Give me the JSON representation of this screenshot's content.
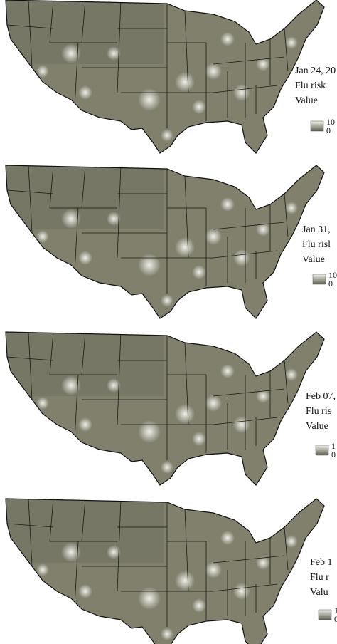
{
  "panels": [
    {
      "date": "Jan 24, 20",
      "label": "Flu risk",
      "value_label": "Value",
      "legend_max": "10",
      "legend_min": "0"
    },
    {
      "date": "Jan 31,",
      "label": "Flu risl",
      "value_label": "Value",
      "legend_max": "10",
      "legend_min": "0"
    },
    {
      "date": "Feb 07,",
      "label": "Flu ris",
      "value_label": "Value",
      "legend_max": "1",
      "legend_min": "0"
    },
    {
      "date": "Feb 1",
      "label": "Flu r",
      "value_label": "Valu",
      "legend_max": "1",
      "legend_min": "0"
    }
  ]
}
